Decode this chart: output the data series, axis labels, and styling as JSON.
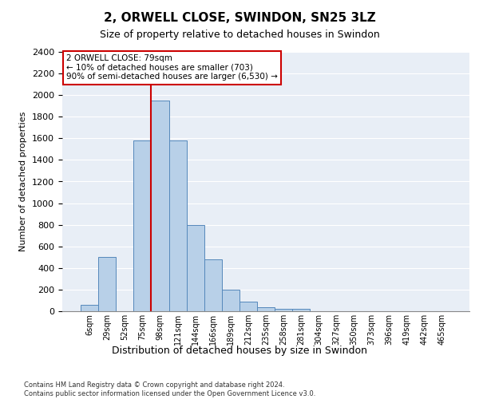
{
  "title": "2, ORWELL CLOSE, SWINDON, SN25 3LZ",
  "subtitle": "Size of property relative to detached houses in Swindon",
  "xlabel": "Distribution of detached houses by size in Swindon",
  "ylabel": "Number of detached properties",
  "bar_color": "#b8d0e8",
  "bar_edge_color": "#5588bb",
  "background_color": "#e8eef6",
  "categories": [
    "6sqm",
    "29sqm",
    "52sqm",
    "75sqm",
    "98sqm",
    "121sqm",
    "144sqm",
    "166sqm",
    "189sqm",
    "212sqm",
    "235sqm",
    "258sqm",
    "281sqm",
    "304sqm",
    "327sqm",
    "350sqm",
    "373sqm",
    "396sqm",
    "419sqm",
    "442sqm",
    "465sqm"
  ],
  "values": [
    60,
    500,
    0,
    1580,
    1950,
    1580,
    800,
    480,
    200,
    90,
    35,
    25,
    20,
    0,
    0,
    0,
    0,
    0,
    0,
    0,
    0
  ],
  "ylim": [
    0,
    2400
  ],
  "yticks": [
    0,
    200,
    400,
    600,
    800,
    1000,
    1200,
    1400,
    1600,
    1800,
    2000,
    2200,
    2400
  ],
  "vline_x": 3.5,
  "vline_color": "#cc0000",
  "annotation_text_line1": "2 ORWELL CLOSE: 79sqm",
  "annotation_text_line2": "← 10% of detached houses are smaller (703)",
  "annotation_text_line3": "90% of semi-detached houses are larger (6,530) →",
  "annotation_box_color": "white",
  "annotation_border_color": "#cc0000",
  "footer_line1": "Contains HM Land Registry data © Crown copyright and database right 2024.",
  "footer_line2": "Contains public sector information licensed under the Open Government Licence v3.0."
}
